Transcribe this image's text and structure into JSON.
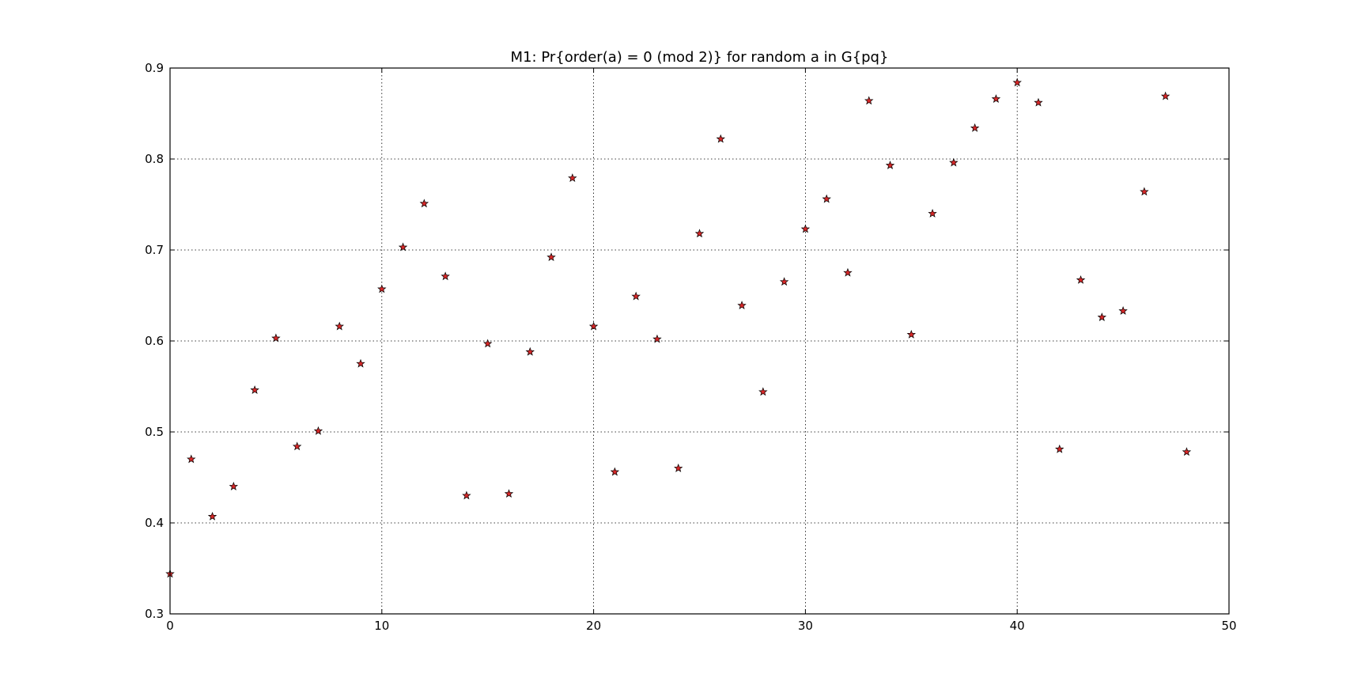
{
  "chart_data": {
    "type": "scatter",
    "title": "M1: Pr{order(a) = 0 (mod 2)} for random a in G{pq}",
    "xlabel": "",
    "ylabel": "",
    "xlim": [
      0,
      50
    ],
    "ylim": [
      0.3,
      0.9
    ],
    "x_ticks": [
      0,
      10,
      20,
      30,
      40,
      50
    ],
    "y_ticks": [
      0.3,
      0.4,
      0.5,
      0.6,
      0.7,
      0.8,
      0.9
    ],
    "x_tick_labels": [
      "0",
      "10",
      "20",
      "30",
      "40",
      "50"
    ],
    "y_tick_labels": [
      "0.3",
      "0.4",
      "0.5",
      "0.6",
      "0.7",
      "0.8",
      "0.9"
    ],
    "grid": true,
    "marker": "star",
    "marker_color": "#d62728",
    "series": [
      {
        "x": [
          0,
          1,
          2,
          3,
          4,
          5,
          6,
          7,
          8,
          9,
          10,
          11,
          12,
          13,
          14,
          15,
          16,
          17,
          18,
          19,
          20,
          21,
          22,
          23,
          24,
          25,
          26,
          27,
          28,
          29,
          30,
          31,
          32,
          33,
          34,
          35,
          36,
          37,
          38,
          39,
          40,
          41,
          42,
          43,
          44,
          45,
          46,
          47,
          48
        ],
        "y": [
          0.344,
          0.47,
          0.407,
          0.44,
          0.546,
          0.603,
          0.484,
          0.501,
          0.616,
          0.575,
          0.657,
          0.703,
          0.751,
          0.671,
          0.43,
          0.597,
          0.432,
          0.588,
          0.692,
          0.779,
          0.616,
          0.456,
          0.649,
          0.602,
          0.46,
          0.718,
          0.822,
          0.639,
          0.544,
          0.665,
          0.723,
          0.756,
          0.675,
          0.864,
          0.793,
          0.607,
          0.74,
          0.796,
          0.834,
          0.866,
          0.884,
          0.862,
          0.481,
          0.667,
          0.626,
          0.633,
          0.764,
          0.869,
          0.478
        ]
      }
    ]
  }
}
